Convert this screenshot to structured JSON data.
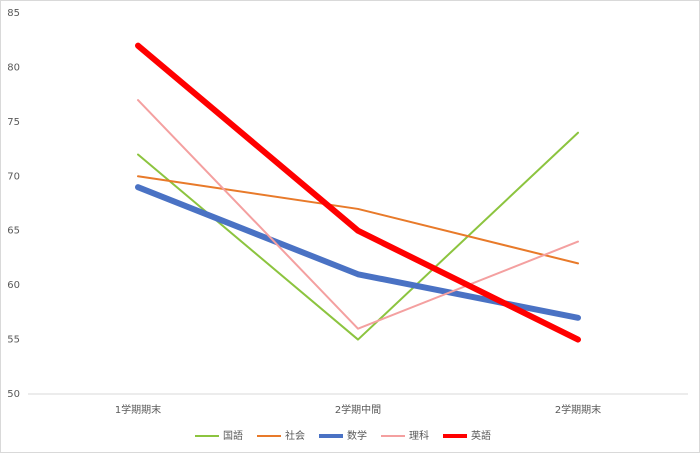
{
  "chart_data": {
    "type": "line",
    "categories": [
      "1学期期末",
      "2学期中間",
      "2学期期末"
    ],
    "series": [
      {
        "name": "国語",
        "color": "#8cc43f",
        "width": 2,
        "values": [
          72,
          55,
          74
        ]
      },
      {
        "name": "社会",
        "color": "#e87a2a",
        "width": 2,
        "values": [
          70,
          67,
          62
        ]
      },
      {
        "name": "数学",
        "color": "#4a72c4",
        "width": 6,
        "values": [
          69,
          61,
          57
        ]
      },
      {
        "name": "理科",
        "color": "#f4a0a0",
        "width": 2,
        "values": [
          77,
          56,
          64
        ]
      },
      {
        "name": "英語",
        "color": "#ff0000",
        "width": 6,
        "values": [
          82,
          65,
          55
        ]
      }
    ],
    "ylim": [
      50,
      85
    ],
    "yticks": [
      50,
      55,
      60,
      65,
      70,
      75,
      80,
      85
    ],
    "grid": false,
    "legend": "bottom"
  }
}
